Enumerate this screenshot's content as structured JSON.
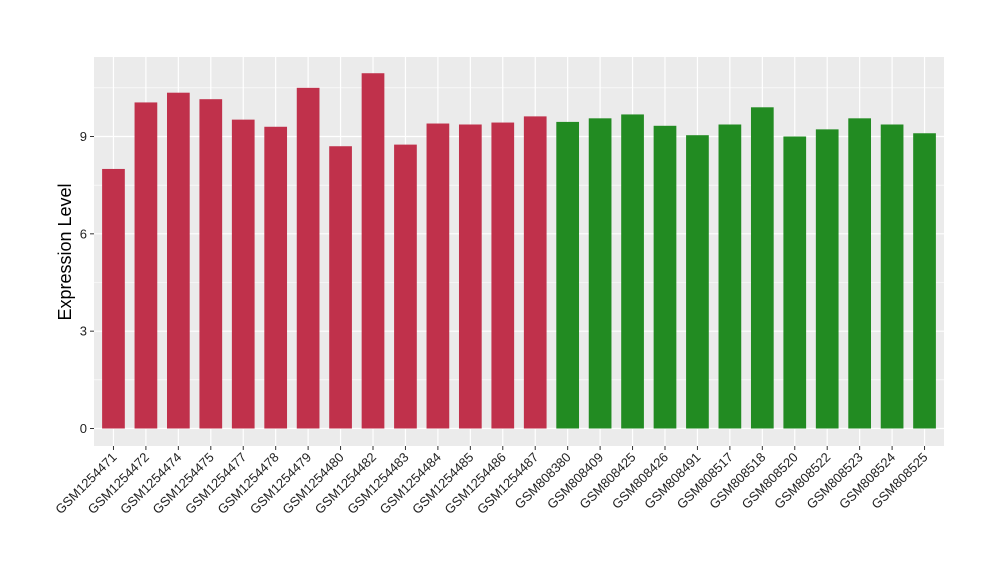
{
  "chart_data": {
    "type": "bar",
    "title": "",
    "xlabel": "",
    "ylabel": "Expression Level",
    "ylim": [
      0,
      11.3
    ],
    "yticks": [
      0,
      3,
      6,
      9
    ],
    "ytick_labels": [
      "0",
      "3",
      "6",
      "9"
    ],
    "grid": true,
    "panel_background": "#ebebeb",
    "grid_color": "#ffffff",
    "categories": [
      "GSM1254471",
      "GSM1254472",
      "GSM1254474",
      "GSM1254475",
      "GSM1254477",
      "GSM1254478",
      "GSM1254479",
      "GSM1254480",
      "GSM1254482",
      "GSM1254483",
      "GSM1254484",
      "GSM1254485",
      "GSM1254486",
      "GSM1254487",
      "GSM808380",
      "GSM808409",
      "GSM808425",
      "GSM808426",
      "GSM808491",
      "GSM808517",
      "GSM808518",
      "GSM808520",
      "GSM808522",
      "GSM808523",
      "GSM808524",
      "GSM808525"
    ],
    "values": [
      8.0,
      10.05,
      10.35,
      10.15,
      9.52,
      9.3,
      10.5,
      8.7,
      10.95,
      8.75,
      9.4,
      9.37,
      9.43,
      9.62,
      9.45,
      9.56,
      9.68,
      9.33,
      9.04,
      9.37,
      9.9,
      9.0,
      9.22,
      9.56,
      9.37,
      9.1
    ],
    "bar_colors": [
      "#c0314b",
      "#c0314b",
      "#c0314b",
      "#c0314b",
      "#c0314b",
      "#c0314b",
      "#c0314b",
      "#c0314b",
      "#c0314b",
      "#c0314b",
      "#c0314b",
      "#c0314b",
      "#c0314b",
      "#c0314b",
      "#228b22",
      "#228b22",
      "#228b22",
      "#228b22",
      "#228b22",
      "#228b22",
      "#228b22",
      "#228b22",
      "#228b22",
      "#228b22",
      "#228b22",
      "#228b22"
    ]
  }
}
